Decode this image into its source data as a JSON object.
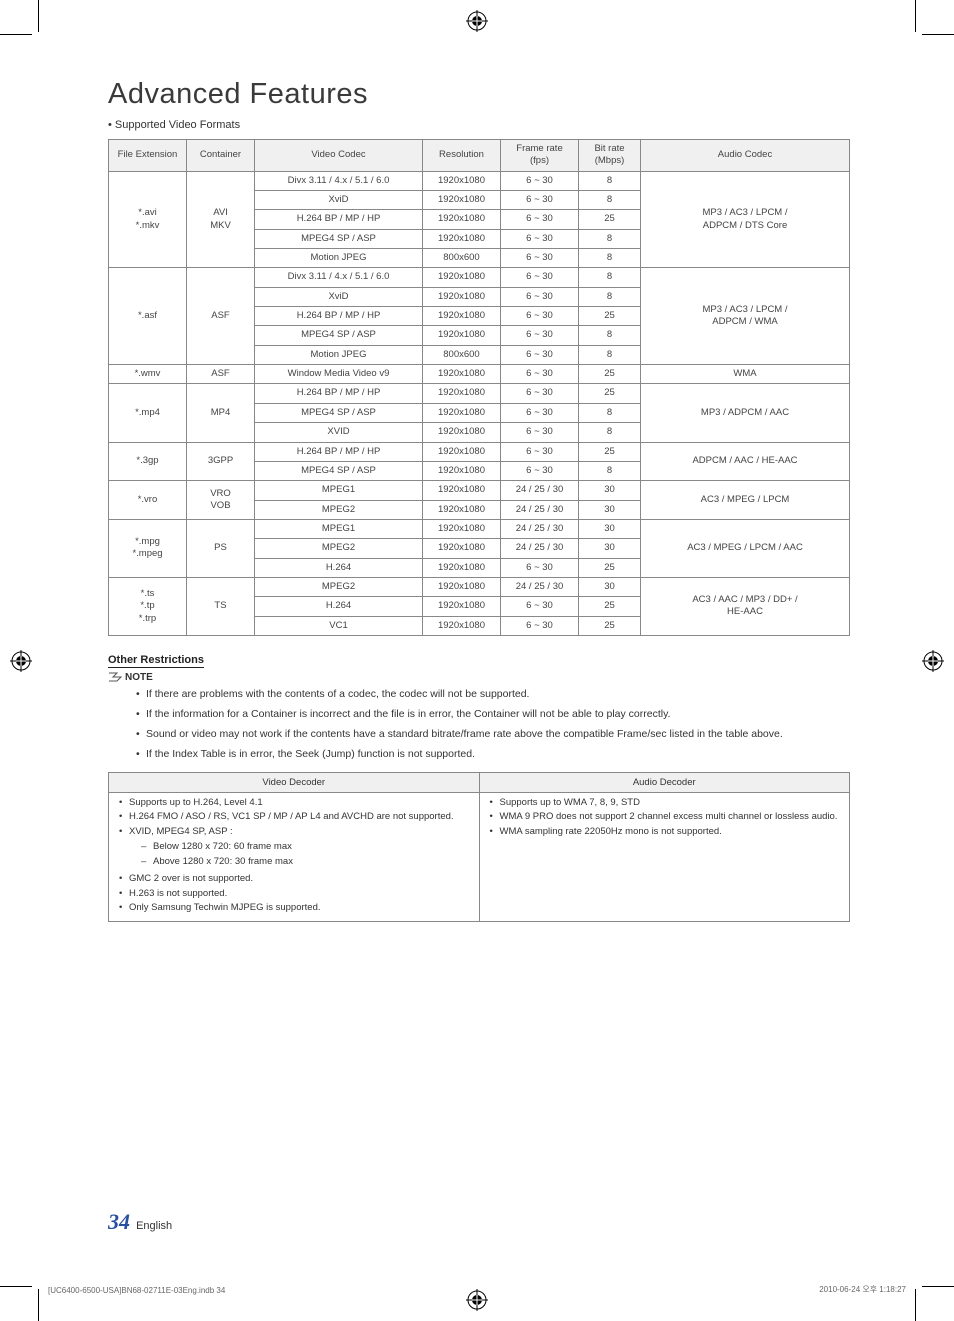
{
  "title": "Advanced Features",
  "section_label": "Supported Video Formats",
  "table": {
    "headers": [
      "File Extension",
      "Container",
      "Video Codec",
      "Resolution",
      "Frame rate\n(fps)",
      "Bit rate\n(Mbps)",
      "Audio Codec"
    ],
    "groups": [
      {
        "ext": "*.avi\n*.mkv",
        "container": "AVI\nMKV",
        "audio": "MP3 / AC3 / LPCM /\nADPCM / DTS Core",
        "rows": [
          [
            "Divx 3.11 / 4.x / 5.1 / 6.0",
            "1920x1080",
            "6 ~ 30",
            "8"
          ],
          [
            "XviD",
            "1920x1080",
            "6 ~ 30",
            "8"
          ],
          [
            "H.264 BP / MP / HP",
            "1920x1080",
            "6 ~ 30",
            "25"
          ],
          [
            "MPEG4 SP / ASP",
            "1920x1080",
            "6 ~ 30",
            "8"
          ],
          [
            "Motion JPEG",
            "800x600",
            "6 ~ 30",
            "8"
          ]
        ]
      },
      {
        "ext": "*.asf",
        "container": "ASF",
        "audio": "MP3 / AC3 / LPCM /\nADPCM / WMA",
        "rows": [
          [
            "Divx 3.11 / 4.x / 5.1 / 6.0",
            "1920x1080",
            "6 ~ 30",
            "8"
          ],
          [
            "XviD",
            "1920x1080",
            "6 ~ 30",
            "8"
          ],
          [
            "H.264 BP / MP / HP",
            "1920x1080",
            "6 ~ 30",
            "25"
          ],
          [
            "MPEG4 SP / ASP",
            "1920x1080",
            "6 ~ 30",
            "8"
          ],
          [
            "Motion JPEG",
            "800x600",
            "6 ~ 30",
            "8"
          ]
        ]
      },
      {
        "ext": "*.wmv",
        "container": "ASF",
        "audio": "WMA",
        "rows": [
          [
            "Window Media Video v9",
            "1920x1080",
            "6 ~ 30",
            "25"
          ]
        ]
      },
      {
        "ext": "*.mp4",
        "container": "MP4",
        "audio": "MP3 / ADPCM / AAC",
        "rows": [
          [
            "H.264 BP / MP / HP",
            "1920x1080",
            "6 ~ 30",
            "25"
          ],
          [
            "MPEG4 SP / ASP",
            "1920x1080",
            "6 ~ 30",
            "8"
          ],
          [
            "XVID",
            "1920x1080",
            "6 ~ 30",
            "8"
          ]
        ]
      },
      {
        "ext": "*.3gp",
        "container": "3GPP",
        "audio": "ADPCM / AAC / HE-AAC",
        "rows": [
          [
            "H.264 BP / MP / HP",
            "1920x1080",
            "6 ~ 30",
            "25"
          ],
          [
            "MPEG4 SP / ASP",
            "1920x1080",
            "6 ~ 30",
            "8"
          ]
        ]
      },
      {
        "ext": "*.vro",
        "container": "VRO\nVOB",
        "audio": "AC3 / MPEG / LPCM",
        "rows": [
          [
            "MPEG1",
            "1920x1080",
            "24 / 25 / 30",
            "30"
          ],
          [
            "MPEG2",
            "1920x1080",
            "24 / 25 / 30",
            "30"
          ]
        ]
      },
      {
        "ext": "*.mpg\n*.mpeg",
        "container": "PS",
        "audio": "AC3 / MPEG / LPCM / AAC",
        "rows": [
          [
            "MPEG1",
            "1920x1080",
            "24 / 25 / 30",
            "30"
          ],
          [
            "MPEG2",
            "1920x1080",
            "24 / 25 / 30",
            "30"
          ],
          [
            "H.264",
            "1920x1080",
            "6 ~ 30",
            "25"
          ]
        ]
      },
      {
        "ext": "*.ts\n*.tp\n*.trp",
        "container": "TS",
        "audio": "AC3 / AAC / MP3 / DD+ /\nHE-AAC",
        "rows": [
          [
            "MPEG2",
            "1920x1080",
            "24 / 25 / 30",
            "30"
          ],
          [
            "H.264",
            "1920x1080",
            "6 ~ 30",
            "25"
          ],
          [
            "VC1",
            "1920x1080",
            "6 ~ 30",
            "25"
          ]
        ]
      }
    ]
  },
  "restrictions_heading": "Other Restrictions",
  "note_label": "NOTE",
  "notes": [
    "If there are problems with the contents of a codec, the codec will not be supported.",
    "If the information for a Container is incorrect and the file is in error, the Container will not be able to play correctly.",
    "Sound or video may not work if the contents have a standard bitrate/frame rate above the compatible Frame/sec listed in the table above.",
    "If the Index Table is in error, the Seek (Jump) function is not supported."
  ],
  "decoder": {
    "headers": [
      "Video Decoder",
      "Audio Decoder"
    ],
    "video": {
      "items": [
        "Supports up to H.264, Level 4.1",
        "H.264 FMO / ASO / RS, VC1 SP / MP / AP L4 and AVCHD are not supported.",
        "XVID, MPEG4 SP, ASP :"
      ],
      "sub": [
        "Below 1280 x 720: 60 frame max",
        "Above 1280 x 720: 30 frame max"
      ],
      "tail": [
        "GMC 2 over is not supported.",
        "H.263 is not supported.",
        "Only Samsung Techwin MJPEG is supported."
      ]
    },
    "audio": {
      "items": [
        "Supports up to WMA 7, 8, 9, STD",
        "WMA 9 PRO does not support 2 channel excess multi channel or lossless audio.",
        "WMA sampling rate 22050Hz mono is not supported."
      ]
    }
  },
  "page_number": "34",
  "page_lang": "English",
  "footer_left": "[UC6400-6500-USA]BN68-02711E-03Eng.indb   34",
  "footer_right": "2010-06-24   오후 1:18:27"
}
